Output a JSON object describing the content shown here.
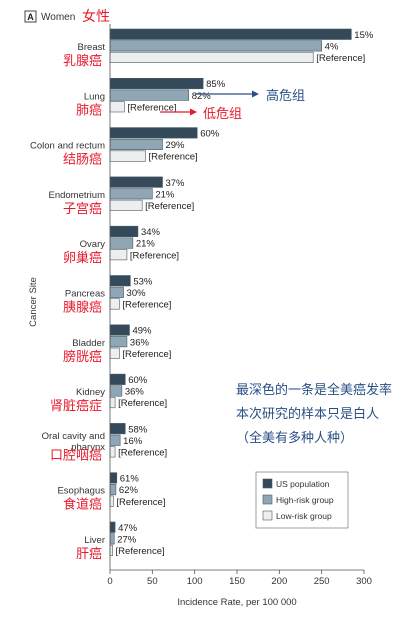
{
  "panel": {
    "letter": "A",
    "title": "Women",
    "title_zh": "女性"
  },
  "chart_data": {
    "type": "bar",
    "orientation": "horizontal",
    "ylabel": "Cancer Site",
    "xlabel": "Incidence Rate, per 100 000",
    "xlim": [
      0,
      300
    ],
    "xticks": [
      0,
      50,
      100,
      150,
      200,
      250,
      300
    ],
    "categories": [
      {
        "en": "Breast",
        "zh": "乳腺癌",
        "us": 285,
        "high": 250,
        "low": 240,
        "us_label": "15%",
        "high_label": "4%",
        "low_label": "[Reference]"
      },
      {
        "en": "Lung",
        "zh": "肺癌",
        "us": 110,
        "high": 93,
        "low": 17,
        "us_label": "85%",
        "high_label": "82%",
        "low_label": "[Reference]"
      },
      {
        "en": "Colon and rectum",
        "zh": "结肠癌",
        "us": 103,
        "high": 62,
        "low": 42,
        "us_label": "60%",
        "high_label": "29%",
        "low_label": "[Reference]"
      },
      {
        "en": "Endometrium",
        "zh": "子宫癌",
        "us": 62,
        "high": 50,
        "low": 38,
        "us_label": "37%",
        "high_label": "21%",
        "low_label": "[Reference]"
      },
      {
        "en": "Ovary",
        "zh": "卵巢癌",
        "us": 33,
        "high": 27,
        "low": 20,
        "us_label": "34%",
        "high_label": "21%",
        "low_label": "[Reference]"
      },
      {
        "en": "Pancreas",
        "zh": "胰腺癌",
        "us": 24,
        "high": 16,
        "low": 11,
        "us_label": "53%",
        "high_label": "30%",
        "low_label": "[Reference]"
      },
      {
        "en": "Bladder",
        "zh": "膀胱癌",
        "us": 23,
        "high": 20,
        "low": 11,
        "us_label": "49%",
        "high_label": "36%",
        "low_label": "[Reference]"
      },
      {
        "en": "Kidney",
        "zh": "肾脏癌症",
        "us": 18,
        "high": 14,
        "low": 6,
        "us_label": "60%",
        "high_label": "36%",
        "low_label": "[Reference]"
      },
      {
        "en": "Oral cavity and\npharynx",
        "zh": "口腔咽癌",
        "us": 18,
        "high": 12,
        "low": 6,
        "us_label": "58%",
        "high_label": "16%",
        "low_label": "[Reference]"
      },
      {
        "en": "Esophagus",
        "zh": "食道癌",
        "us": 8,
        "high": 7,
        "low": 4,
        "us_label": "61%",
        "high_label": "62%",
        "low_label": "[Reference]"
      },
      {
        "en": "Liver",
        "zh": "肝癌",
        "us": 6,
        "high": 5,
        "low": 3,
        "us_label": "47%",
        "high_label": "27%",
        "low_label": "[Reference]"
      }
    ],
    "legend": [
      {
        "label": "US population",
        "color": "#34495a"
      },
      {
        "label": "High-risk group",
        "color": "#8fa6b5"
      },
      {
        "label": "Low-risk group",
        "color": "#eceeef"
      }
    ],
    "legend_placement": "bottom-right"
  },
  "annotations": {
    "high_risk_zh": "高危组",
    "low_risk_zh": "低危组",
    "note_lines": [
      "最深色的一条是全美癌发率",
      "本次研究的样本只是白人",
      "（全美有多种人种）"
    ]
  },
  "colors": {
    "us": "#34495a",
    "high": "#8fa6b5",
    "low": "#eceeef",
    "accent": "#e8192c",
    "note": "#2a4f86"
  }
}
